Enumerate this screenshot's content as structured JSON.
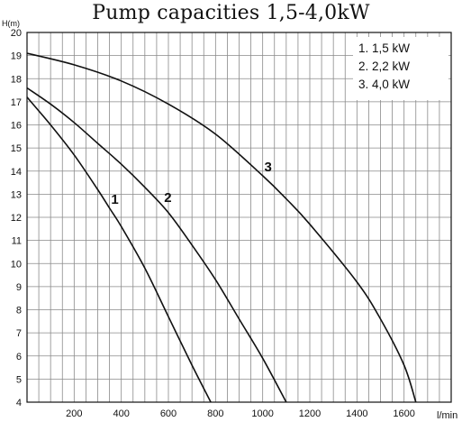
{
  "chart_data": {
    "type": "line",
    "title": "Pump capacities  1,5-4,0kW",
    "ylabel": "H(m)",
    "xlabel": "l/min",
    "xlim": [
      0,
      1800
    ],
    "ylim": [
      4,
      20
    ],
    "x_ticks": [
      200,
      400,
      600,
      800,
      1000,
      1200,
      1400,
      1600
    ],
    "y_ticks": [
      4,
      5,
      6,
      7,
      8,
      9,
      10,
      11,
      12,
      13,
      14,
      15,
      16,
      17,
      18,
      19,
      20
    ],
    "grid": true,
    "legend_position": "top-right",
    "legend": [
      "1. 1,5 kW",
      "2. 2,2 kW",
      "3. 4,0 kW"
    ],
    "series": [
      {
        "label": "1",
        "x": [
          0,
          100,
          200,
          300,
          350,
          400,
          500,
          600,
          700,
          780
        ],
        "y": [
          17.2,
          16.0,
          14.7,
          13.2,
          12.4,
          11.6,
          9.8,
          7.7,
          5.6,
          4.0
        ]
      },
      {
        "label": "2",
        "x": [
          0,
          100,
          200,
          300,
          400,
          500,
          600,
          700,
          800,
          900,
          1000,
          1100
        ],
        "y": [
          17.6,
          16.9,
          16.1,
          15.2,
          14.3,
          13.3,
          12.2,
          10.8,
          9.3,
          7.6,
          5.9,
          4.0
        ]
      },
      {
        "label": "3",
        "x": [
          0,
          200,
          400,
          600,
          800,
          1000,
          1100,
          1200,
          1400,
          1500,
          1600,
          1650
        ],
        "y": [
          19.1,
          18.6,
          17.9,
          16.9,
          15.6,
          13.8,
          12.8,
          11.7,
          9.2,
          7.6,
          5.6,
          4.0
        ]
      }
    ]
  }
}
